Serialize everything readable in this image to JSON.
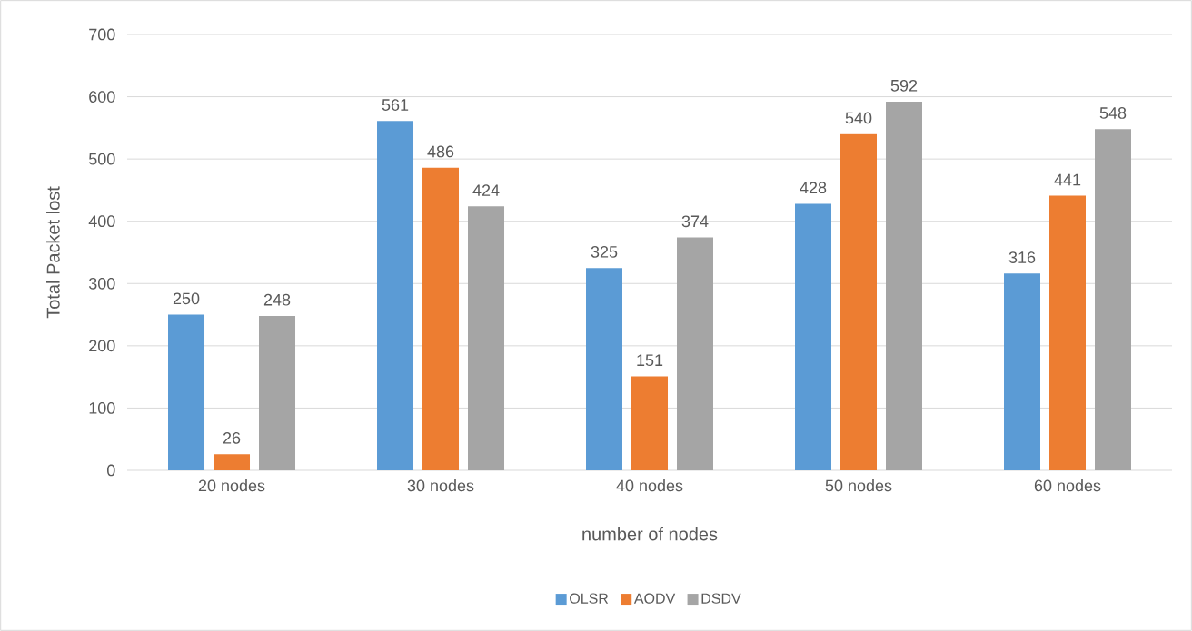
{
  "chart_data": {
    "type": "bar",
    "xlabel": "number of nodes",
    "ylabel": "Total Packet lost",
    "categories": [
      "20 nodes",
      "30 nodes",
      "40 nodes",
      "50 nodes",
      "60 nodes"
    ],
    "series": [
      {
        "name": "OLSR",
        "color": "#5b9bd5",
        "values": [
          250,
          561,
          325,
          428,
          316
        ]
      },
      {
        "name": "AODV",
        "color": "#ed7d31",
        "values": [
          26,
          486,
          151,
          540,
          441
        ]
      },
      {
        "name": "DSDV",
        "color": "#a5a5a5",
        "values": [
          248,
          424,
          374,
          592,
          548
        ]
      }
    ],
    "ylim": [
      0,
      700
    ],
    "yticks": [
      0,
      100,
      200,
      300,
      400,
      500,
      600,
      700
    ],
    "grid": "y",
    "legend": "bottom",
    "data_labels": true
  }
}
